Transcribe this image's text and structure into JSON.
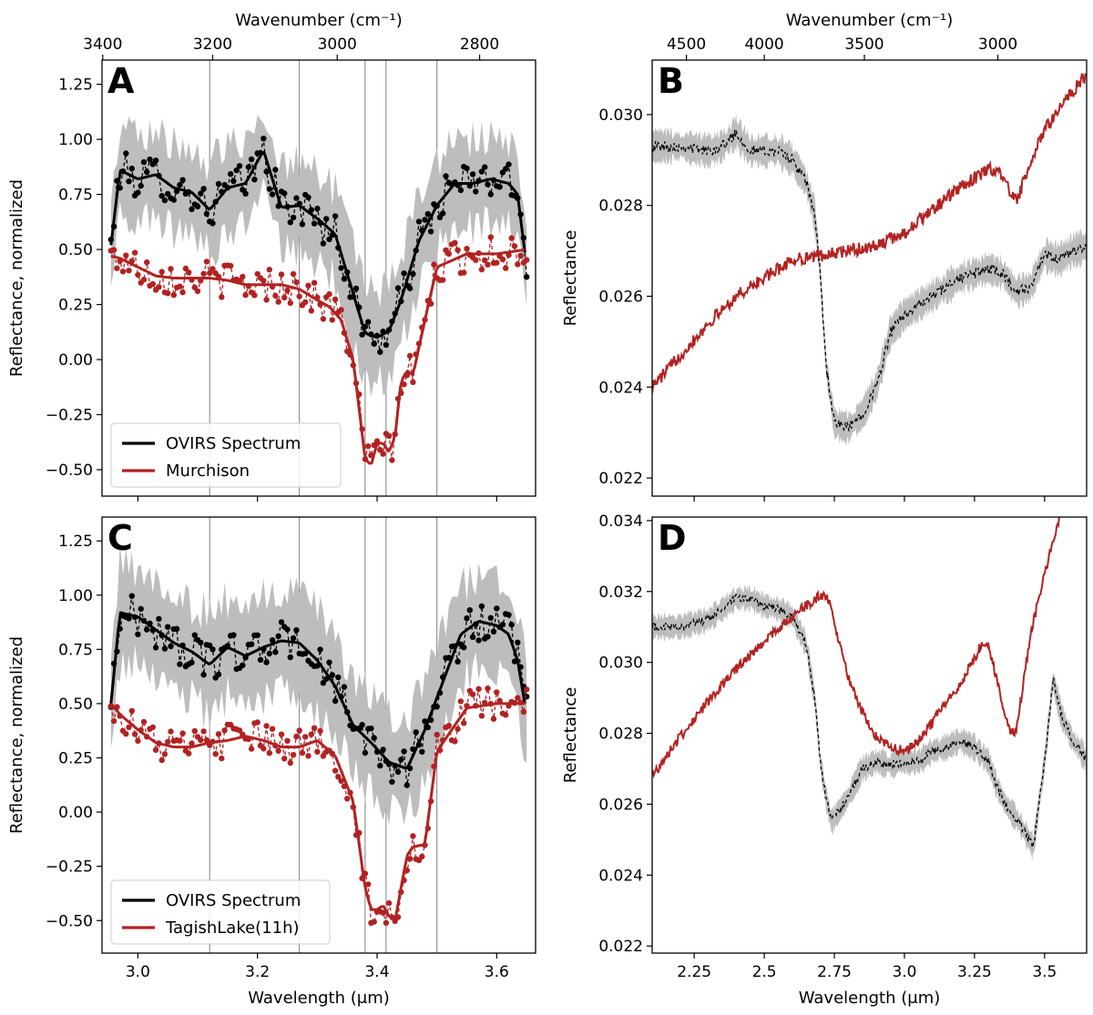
{
  "figure": {
    "palette": {
      "ovirs": "#000000",
      "band": "#bdbdbd",
      "murchison": "#b22222",
      "tagish": "#b22222",
      "reference_line": "#808080"
    }
  },
  "chart_data": [
    {
      "panel": "A",
      "type": "line",
      "xlabel": "Wavelength (μm)",
      "x_tick_labels_visible": false,
      "ylabel": "Reflectance, normalized",
      "top_xlabel": "Wavenumber (cm⁻¹)",
      "top_ticks": [
        3400,
        3200,
        3000,
        2800
      ],
      "xlim": [
        2.94,
        3.665
      ],
      "ylim": [
        -0.62,
        1.36
      ],
      "xticks": [
        3.0,
        3.2,
        3.4,
        3.6
      ],
      "yticks": [
        -0.5,
        -0.25,
        0.0,
        0.25,
        0.5,
        0.75,
        1.0,
        1.25
      ],
      "vlines": [
        3.12,
        3.27,
        3.38,
        3.415,
        3.5
      ],
      "legend": {
        "position": "lower-left",
        "entries": [
          "OVIRS Spectrum",
          "Murchison"
        ]
      },
      "series": [
        {
          "name": "OVIRS Spectrum",
          "style": "smooth+dashed-points+band",
          "x": [
            2.955,
            2.97,
            3.0,
            3.03,
            3.06,
            3.09,
            3.12,
            3.15,
            3.18,
            3.21,
            3.24,
            3.27,
            3.3,
            3.33,
            3.36,
            3.38,
            3.4,
            3.42,
            3.44,
            3.47,
            3.5,
            3.53,
            3.56,
            3.59,
            3.62,
            3.635,
            3.65
          ],
          "values": [
            0.52,
            0.86,
            0.82,
            0.84,
            0.78,
            0.76,
            0.68,
            0.78,
            0.8,
            0.95,
            0.69,
            0.7,
            0.64,
            0.57,
            0.3,
            0.12,
            0.1,
            0.13,
            0.27,
            0.54,
            0.7,
            0.8,
            0.8,
            0.82,
            0.8,
            0.75,
            0.42
          ],
          "band": 0.2
        },
        {
          "name": "Murchison",
          "style": "smooth+dashed-points",
          "x": [
            2.955,
            2.97,
            3.0,
            3.03,
            3.06,
            3.09,
            3.12,
            3.15,
            3.18,
            3.21,
            3.24,
            3.27,
            3.3,
            3.32,
            3.34,
            3.36,
            3.38,
            3.39,
            3.4,
            3.41,
            3.42,
            3.43,
            3.44,
            3.45,
            3.46,
            3.48,
            3.5,
            3.55,
            3.6,
            3.65
          ],
          "values": [
            0.47,
            0.46,
            0.42,
            0.38,
            0.37,
            0.37,
            0.37,
            0.36,
            0.34,
            0.34,
            0.34,
            0.32,
            0.27,
            0.24,
            0.18,
            0.0,
            -0.45,
            -0.48,
            -0.38,
            -0.38,
            -0.42,
            -0.35,
            -0.1,
            -0.05,
            -0.07,
            0.18,
            0.42,
            0.48,
            0.48,
            0.5
          ]
        }
      ]
    },
    {
      "panel": "B",
      "type": "line",
      "xlabel": "Wavelength (μm)",
      "x_tick_labels_visible": false,
      "ylabel": "Reflectance",
      "top_xlabel": "Wavenumber (cm⁻¹)",
      "top_ticks": [
        4500,
        4000,
        3500,
        3000
      ],
      "xlim": [
        2.1,
        3.65
      ],
      "ylim": [
        0.0216,
        0.0312
      ],
      "yticks": [
        0.022,
        0.024,
        0.026,
        0.028,
        0.03
      ],
      "xticks": [
        2.25,
        2.5,
        2.75,
        3.0,
        3.25,
        3.5
      ],
      "series": [
        {
          "name": "OVIRS Spectrum",
          "style": "dashed+band",
          "x": [
            2.1,
            2.2,
            2.3,
            2.35,
            2.4,
            2.45,
            2.5,
            2.55,
            2.6,
            2.65,
            2.68,
            2.7,
            2.72,
            2.75,
            2.8,
            2.85,
            2.9,
            2.95,
            3.0,
            3.05,
            3.1,
            3.15,
            3.2,
            3.25,
            3.3,
            3.35,
            3.4,
            3.45,
            3.5,
            3.55,
            3.6,
            3.65
          ],
          "values": [
            0.0293,
            0.0293,
            0.0292,
            0.0293,
            0.0296,
            0.0292,
            0.0292,
            0.0292,
            0.029,
            0.0285,
            0.0278,
            0.0265,
            0.0245,
            0.0232,
            0.0231,
            0.0234,
            0.024,
            0.0252,
            0.0256,
            0.0258,
            0.026,
            0.0262,
            0.0264,
            0.0265,
            0.0266,
            0.0265,
            0.0261,
            0.0262,
            0.0269,
            0.0268,
            0.027,
            0.0271
          ],
          "band": 0.0003
        },
        {
          "name": "Murchison",
          "style": "solid+noisy",
          "x": [
            2.1,
            2.2,
            2.3,
            2.4,
            2.5,
            2.6,
            2.7,
            2.8,
            2.9,
            3.0,
            3.1,
            3.2,
            3.3,
            3.35,
            3.38,
            3.4,
            3.45,
            3.5,
            3.55,
            3.6,
            3.65
          ],
          "values": [
            0.024,
            0.0247,
            0.0254,
            0.026,
            0.0264,
            0.0268,
            0.0269,
            0.027,
            0.0271,
            0.0274,
            0.0279,
            0.0284,
            0.0288,
            0.0287,
            0.0282,
            0.0281,
            0.0289,
            0.0297,
            0.0301,
            0.0305,
            0.0309
          ]
        }
      ]
    },
    {
      "panel": "C",
      "type": "line",
      "xlabel": "Wavelength (μm)",
      "ylabel": "Reflectance, normalized",
      "xlim": [
        2.94,
        3.665
      ],
      "ylim": [
        -0.65,
        1.36
      ],
      "xticks": [
        3.0,
        3.2,
        3.4,
        3.6
      ],
      "yticks": [
        -0.5,
        -0.25,
        0.0,
        0.25,
        0.5,
        0.75,
        1.0,
        1.25
      ],
      "vlines": [
        3.12,
        3.27,
        3.38,
        3.415,
        3.5
      ],
      "legend": {
        "position": "lower-left",
        "entries": [
          "OVIRS Spectrum",
          "TagishLake(11h)"
        ]
      },
      "series": [
        {
          "name": "OVIRS Spectrum",
          "style": "smooth+dashed-points+band",
          "x": [
            2.955,
            2.97,
            3.0,
            3.03,
            3.06,
            3.09,
            3.12,
            3.15,
            3.18,
            3.21,
            3.24,
            3.27,
            3.3,
            3.33,
            3.36,
            3.39,
            3.42,
            3.45,
            3.48,
            3.51,
            3.54,
            3.57,
            3.6,
            3.62,
            3.635,
            3.65
          ],
          "values": [
            0.5,
            0.92,
            0.9,
            0.84,
            0.78,
            0.74,
            0.68,
            0.76,
            0.72,
            0.76,
            0.79,
            0.78,
            0.7,
            0.58,
            0.4,
            0.32,
            0.23,
            0.2,
            0.38,
            0.6,
            0.82,
            0.88,
            0.86,
            0.82,
            0.7,
            0.45
          ],
          "band": 0.22
        },
        {
          "name": "TagishLake(11h)",
          "style": "smooth+dashed-points",
          "x": [
            2.955,
            2.97,
            3.0,
            3.03,
            3.06,
            3.09,
            3.12,
            3.15,
            3.18,
            3.21,
            3.24,
            3.27,
            3.3,
            3.33,
            3.36,
            3.38,
            3.39,
            3.4,
            3.41,
            3.42,
            3.43,
            3.44,
            3.45,
            3.46,
            3.48,
            3.5,
            3.55,
            3.6,
            3.65
          ],
          "values": [
            0.5,
            0.45,
            0.38,
            0.32,
            0.3,
            0.3,
            0.32,
            0.33,
            0.35,
            0.33,
            0.3,
            0.3,
            0.33,
            0.26,
            0.05,
            -0.35,
            -0.45,
            -0.45,
            -0.43,
            -0.48,
            -0.5,
            -0.35,
            -0.2,
            -0.16,
            -0.15,
            0.28,
            0.48,
            0.5,
            0.5
          ]
        }
      ]
    },
    {
      "panel": "D",
      "type": "line",
      "xlabel": "Wavelength (μm)",
      "ylabel": "Reflectance",
      "xlim": [
        2.1,
        3.65
      ],
      "ylim": [
        0.0218,
        0.0341
      ],
      "xticks": [
        2.25,
        2.5,
        2.75,
        3.0,
        3.25,
        3.5
      ],
      "yticks": [
        0.022,
        0.024,
        0.026,
        0.028,
        0.03,
        0.032,
        0.034
      ],
      "series": [
        {
          "name": "OVIRS Spectrum",
          "style": "dashed+band",
          "x": [
            2.1,
            2.2,
            2.3,
            2.35,
            2.4,
            2.45,
            2.5,
            2.55,
            2.6,
            2.65,
            2.68,
            2.7,
            2.72,
            2.74,
            2.8,
            2.85,
            2.9,
            2.95,
            3.0,
            3.05,
            3.1,
            3.15,
            3.2,
            3.25,
            3.3,
            3.33,
            3.36,
            3.4,
            3.43,
            3.46,
            3.5,
            3.53,
            3.56,
            3.6,
            3.63,
            3.65
          ],
          "values": [
            0.031,
            0.031,
            0.0312,
            0.0315,
            0.0318,
            0.0318,
            0.0316,
            0.0315,
            0.0313,
            0.0305,
            0.029,
            0.0272,
            0.0262,
            0.0255,
            0.0262,
            0.027,
            0.0272,
            0.0271,
            0.0272,
            0.0272,
            0.0275,
            0.0276,
            0.0278,
            0.0276,
            0.0272,
            0.0265,
            0.026,
            0.0256,
            0.0252,
            0.0248,
            0.0272,
            0.0295,
            0.0285,
            0.0278,
            0.0275,
            0.0272
          ],
          "band": 0.0003
        },
        {
          "name": "TagishLake(11h)",
          "style": "solid+noisy",
          "x": [
            2.1,
            2.2,
            2.3,
            2.4,
            2.5,
            2.6,
            2.65,
            2.7,
            2.73,
            2.76,
            2.8,
            2.85,
            2.9,
            2.95,
            3.0,
            3.05,
            3.1,
            3.15,
            3.2,
            3.25,
            3.28,
            3.3,
            3.33,
            3.36,
            3.38,
            3.4,
            3.42,
            3.45,
            3.5,
            3.55,
            3.6
          ],
          "values": [
            0.0268,
            0.0279,
            0.0289,
            0.0298,
            0.0306,
            0.0313,
            0.0316,
            0.0319,
            0.0318,
            0.0308,
            0.0296,
            0.0286,
            0.0279,
            0.0276,
            0.0275,
            0.0278,
            0.0283,
            0.0289,
            0.0294,
            0.0301,
            0.0306,
            0.0305,
            0.0295,
            0.0284,
            0.028,
            0.0281,
            0.0292,
            0.0308,
            0.0325,
            0.034,
            0.0352
          ]
        }
      ]
    }
  ]
}
